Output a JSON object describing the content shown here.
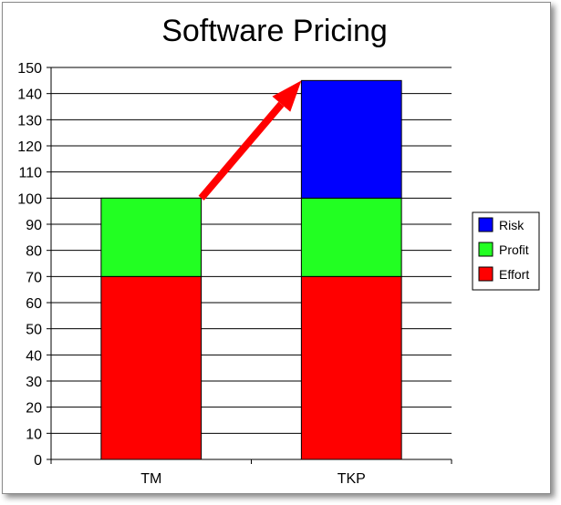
{
  "chart_data": {
    "type": "bar",
    "stacked": true,
    "title": "Software Pricing",
    "categories": [
      "TM",
      "TKP"
    ],
    "series": [
      {
        "name": "Effort",
        "values": [
          70,
          70
        ],
        "color": "#ff0000"
      },
      {
        "name": "Profit",
        "values": [
          30,
          30
        ],
        "color": "#22ff22"
      },
      {
        "name": "Risk",
        "values": [
          0,
          45
        ],
        "color": "#0000ff"
      }
    ],
    "ylim": [
      0,
      150
    ],
    "yticks": [
      0,
      10,
      20,
      30,
      40,
      50,
      60,
      70,
      80,
      90,
      100,
      110,
      120,
      130,
      140,
      150
    ],
    "grid": true,
    "legend": {
      "position": "right",
      "order": [
        "Risk",
        "Profit",
        "Effort"
      ]
    },
    "annotation": {
      "type": "arrow",
      "color": "#ff0000",
      "from": {
        "category": "TM",
        "value": 100
      },
      "to": {
        "category": "TKP",
        "value": 145
      }
    }
  }
}
